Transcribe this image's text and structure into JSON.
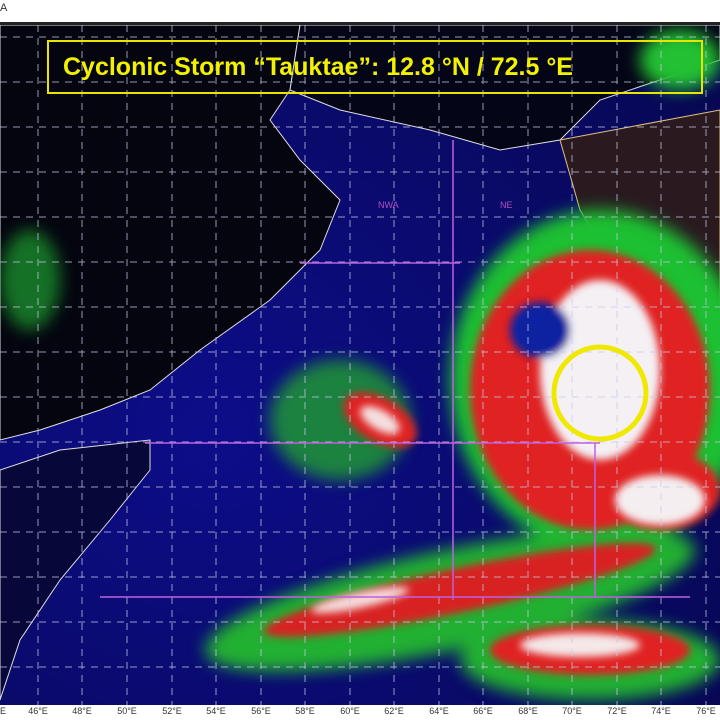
{
  "header": {
    "corner_text": "A"
  },
  "title": "Cyclonic Storm “Tauktae”: 12.8 °N / 72.5 °E",
  "storm": {
    "name": "Tauktae",
    "latitude": "12.8 °N",
    "longitude": "72.5 °E",
    "marker_color": "#f0e800"
  },
  "longitude_labels": [
    "E",
    "46°E",
    "48°E",
    "50°E",
    "52°E",
    "54°E",
    "56°E",
    "58°E",
    "60°E",
    "62°E",
    "64°E",
    "66°E",
    "68°E",
    "70°E",
    "72°E",
    "74°E",
    "76°E"
  ],
  "region_labels": [
    "NWA",
    "NE"
  ],
  "colors": {
    "ocean": "#0b0b6e",
    "land": "#050510",
    "grid": "#c8c8e8",
    "boundary": "#c060e0",
    "title": "#f2f200"
  }
}
